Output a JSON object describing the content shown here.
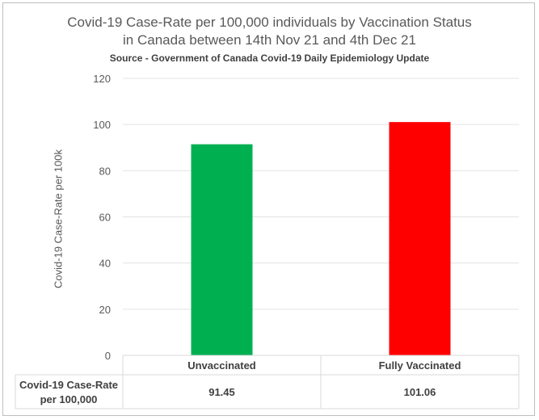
{
  "chart_data": {
    "type": "bar",
    "title_line1": "Covid-19 Case-Rate per 100,000 individuals by Vaccination Status",
    "title_line2": "in Canada between 14th Nov 21 and 4th Dec 21",
    "subtitle": "Source - Government of Canada Covid-19 Daily Epidemiology Update",
    "ylabel": "Covid-19 Case-Rate per 100k",
    "xlabel": "",
    "categories": [
      "Unvaccinated",
      "Fully Vaccinated"
    ],
    "series": [
      {
        "name": "Covid-19 Case-Rate per 100,000",
        "values": [
          91.45,
          101.06
        ],
        "value_labels": [
          "91.45",
          "101.06"
        ]
      }
    ],
    "bar_colors": [
      "#00b050",
      "#ff0000"
    ],
    "ylim": [
      0,
      120
    ],
    "yticks": [
      0,
      20,
      40,
      60,
      80,
      100,
      120
    ],
    "grid": true,
    "legend": "data-table"
  }
}
